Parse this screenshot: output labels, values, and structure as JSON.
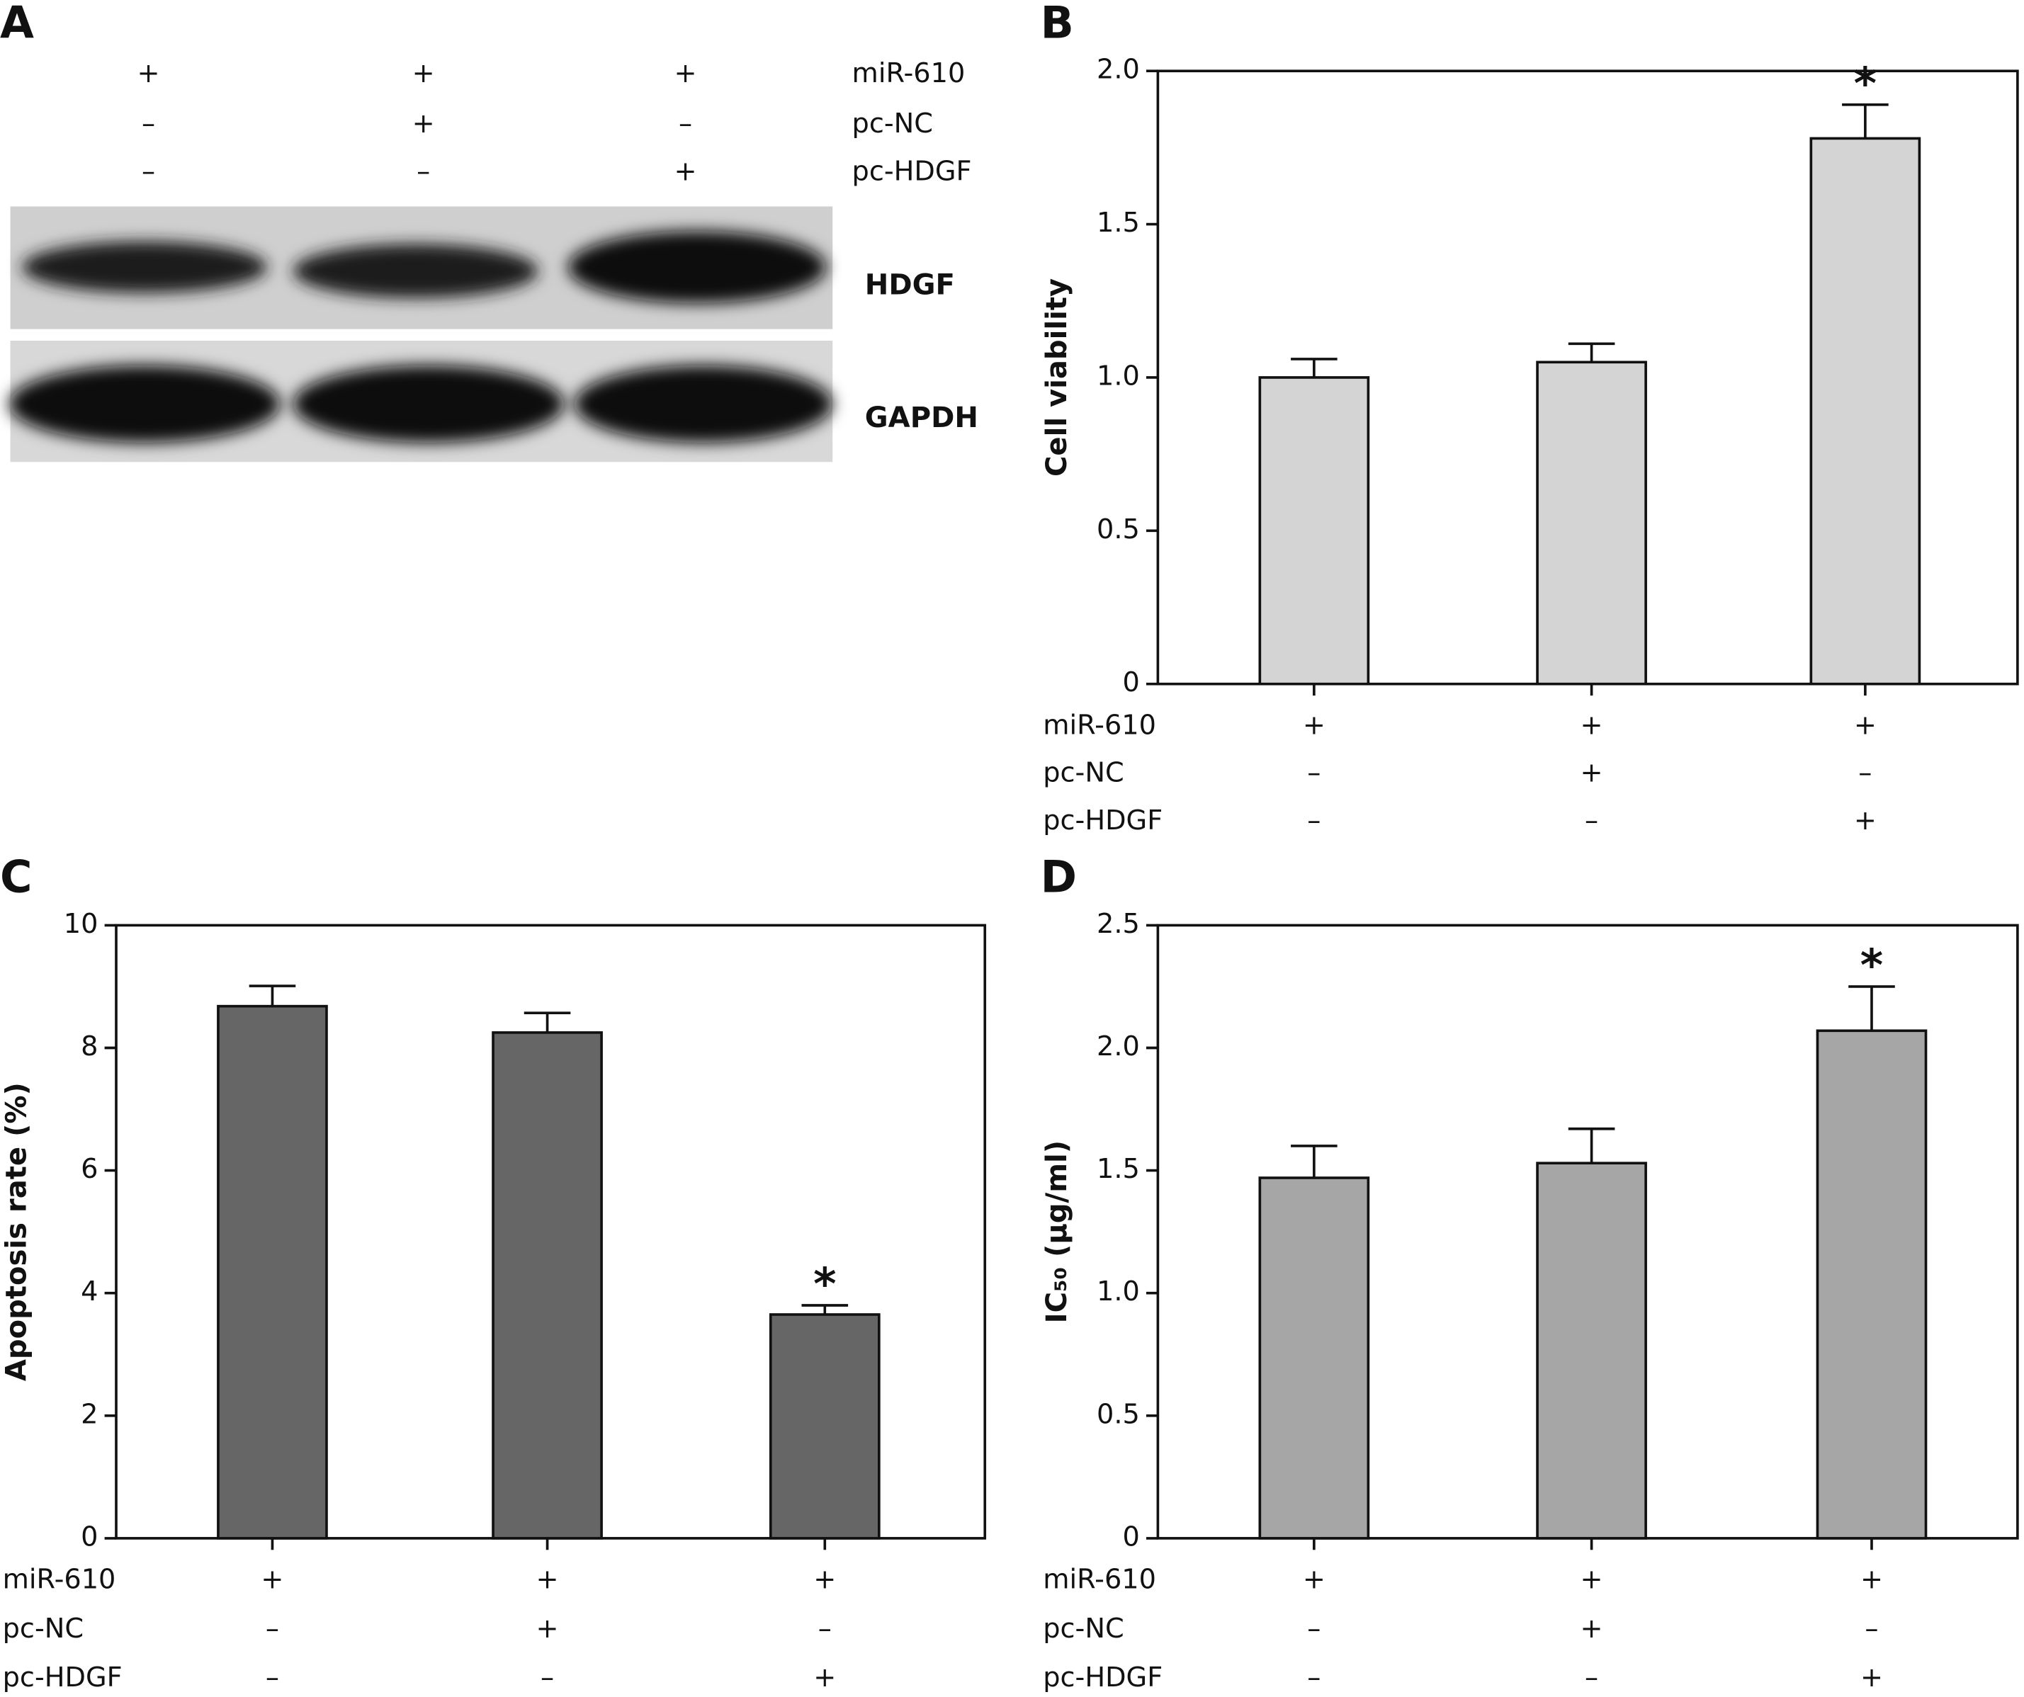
{
  "panels": [
    "A",
    "B",
    "C",
    "D"
  ],
  "blot": {
    "conditions": [
      {
        "name": "miR-610",
        "values": [
          "+",
          "+",
          "+"
        ]
      },
      {
        "name": "pc-NC",
        "values": [
          "–",
          "+",
          "–"
        ]
      },
      {
        "name": "pc-HDGF",
        "values": [
          "–",
          "–",
          "+"
        ]
      }
    ],
    "bands": [
      "HDGF",
      "GAPDH"
    ]
  },
  "chart_data": [
    {
      "type": "bar",
      "y_label": "Cell viability",
      "color": "#d4d4d4",
      "values": [
        1.0,
        1.05,
        1.78
      ],
      "errors": [
        0.06,
        0.06,
        0.11
      ],
      "annotations": [
        null,
        null,
        "*"
      ],
      "ylim": [
        0,
        2
      ],
      "yticks": [
        0,
        0.5,
        {
          "value": 1,
          "label": "1.0"
        },
        1.5,
        {
          "value": 2,
          "label": "2.0"
        }
      ],
      "conditions": [
        {
          "name": "miR-610",
          "values": [
            "+",
            "+",
            "+"
          ]
        },
        {
          "name": "pc-NC",
          "values": [
            "–",
            "+",
            "–"
          ]
        },
        {
          "name": "pc-HDGF",
          "values": [
            "–",
            "–",
            "+"
          ]
        }
      ]
    },
    {
      "type": "bar",
      "y_label": "Apoptosis rate (%)",
      "color": "#666666",
      "values": [
        8.68,
        8.25,
        3.65
      ],
      "errors": [
        0.33,
        0.32,
        0.15
      ],
      "annotations": [
        null,
        null,
        "*"
      ],
      "ylim": [
        0,
        10
      ],
      "yticks": [
        0,
        2,
        4,
        6,
        8,
        10
      ],
      "conditions": [
        {
          "name": "miR-610",
          "values": [
            "+",
            "+",
            "+"
          ]
        },
        {
          "name": "pc-NC",
          "values": [
            "–",
            "+",
            "–"
          ]
        },
        {
          "name": "pc-HDGF",
          "values": [
            "–",
            "–",
            "+"
          ]
        }
      ]
    },
    {
      "type": "bar",
      "y_label": "IC₅₀ (µg/ml)",
      "color": "#a6a6a6",
      "values": [
        1.47,
        1.53,
        2.07
      ],
      "errors": [
        0.13,
        0.14,
        0.18
      ],
      "annotations": [
        null,
        null,
        "*"
      ],
      "ylim": [
        0,
        2.5
      ],
      "yticks": [
        0,
        0.5,
        {
          "value": 1,
          "label": "1.0"
        },
        1.5,
        {
          "value": 2,
          "label": "2.0"
        },
        2.5
      ],
      "conditions": [
        {
          "name": "miR-610",
          "values": [
            "+",
            "+",
            "+"
          ]
        },
        {
          "name": "pc-NC",
          "values": [
            "–",
            "+",
            "–"
          ]
        },
        {
          "name": "pc-HDGF",
          "values": [
            "–",
            "–",
            "+"
          ]
        }
      ]
    }
  ]
}
